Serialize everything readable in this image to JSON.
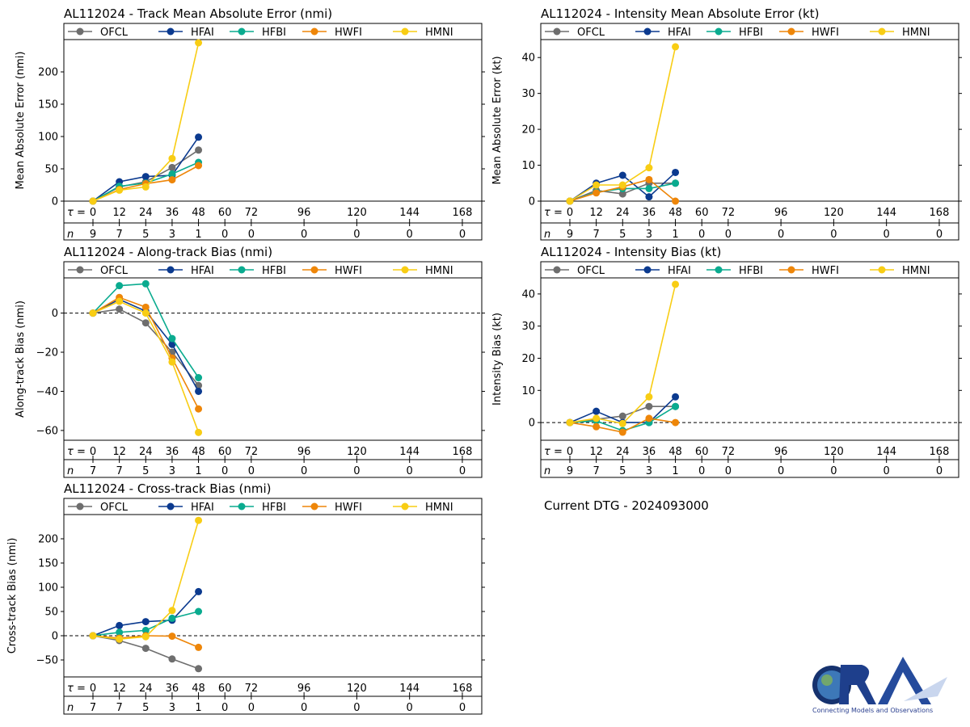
{
  "tau_label": "τ =",
  "n_label": "n",
  "tau_ticks": [
    0,
    12,
    24,
    36,
    48,
    60,
    72,
    96,
    120,
    144,
    168
  ],
  "models": [
    {
      "name": "OFCL",
      "color": "#6e6e6e"
    },
    {
      "name": "HFAI",
      "color": "#0b3a8f"
    },
    {
      "name": "HFBI",
      "color": "#0aab8f"
    },
    {
      "name": "HWFI",
      "color": "#ee8609"
    },
    {
      "name": "HMNI",
      "color": "#f8cd14"
    }
  ],
  "dtg_text": "Current DTG - 2024093000",
  "logo": {
    "text": "CIRA",
    "subtitle": "Connecting Models and Observations"
  },
  "chart_data": [
    {
      "id": "track",
      "type": "line",
      "title": "AL112024 - Track Mean Absolute Error (nmi)",
      "ylabel": "Mean Absolute Error (nmi)",
      "ylim": [
        0,
        250
      ],
      "yticks": [
        0,
        50,
        100,
        150,
        200
      ],
      "zero_line": false,
      "right_axis": false,
      "n_values": [
        9,
        7,
        5,
        3,
        1,
        0,
        0,
        0,
        0,
        0,
        0
      ],
      "x": [
        0,
        12,
        24,
        36,
        48
      ],
      "series": [
        {
          "name": "OFCL",
          "values": [
            0,
            22,
            30,
            52,
            79
          ]
        },
        {
          "name": "HFAI",
          "values": [
            0,
            30,
            38,
            40,
            99
          ]
        },
        {
          "name": "HFBI",
          "values": [
            0,
            23,
            28,
            42,
            60
          ]
        },
        {
          "name": "HWFI",
          "values": [
            0,
            18,
            27,
            33,
            55
          ]
        },
        {
          "name": "HMNI",
          "values": [
            0,
            17,
            22,
            66,
            245
          ]
        }
      ]
    },
    {
      "id": "intensity",
      "type": "line",
      "title": "AL112024 - Intensity Mean Absolute Error (kt)",
      "ylabel": "Mean Absolute Error (kt)",
      "ylim": [
        0,
        45
      ],
      "yticks": [
        0,
        10,
        20,
        30,
        40
      ],
      "zero_line": false,
      "right_axis": true,
      "n_values": [
        9,
        7,
        5,
        3,
        1,
        0,
        0,
        0,
        0,
        0,
        0
      ],
      "x": [
        0,
        12,
        24,
        36,
        48
      ],
      "series": [
        {
          "name": "OFCL",
          "values": [
            0,
            3,
            2,
            5,
            5
          ]
        },
        {
          "name": "HFAI",
          "values": [
            0,
            5,
            7.2,
            1.2,
            8
          ]
        },
        {
          "name": "HFBI",
          "values": [
            0,
            2.5,
            3.5,
            3.5,
            5
          ]
        },
        {
          "name": "HWFI",
          "values": [
            0,
            2.3,
            4,
            6,
            0
          ]
        },
        {
          "name": "HMNI",
          "values": [
            0,
            4.5,
            4.5,
            9.3,
            43
          ]
        }
      ]
    },
    {
      "id": "along",
      "type": "line",
      "title": "AL112024 - Along-track Bias (nmi)",
      "ylabel": "Along-track Bias (nmi)",
      "ylim": [
        -65,
        18
      ],
      "yticks": [
        -60,
        -40,
        -20,
        0
      ],
      "zero_line": true,
      "right_axis": false,
      "n_values": [
        7,
        7,
        5,
        3,
        1,
        0,
        0,
        0,
        0,
        0,
        0
      ],
      "x": [
        0,
        12,
        24,
        36,
        48
      ],
      "series": [
        {
          "name": "OFCL",
          "values": [
            0,
            2,
            -5,
            -20,
            -37
          ]
        },
        {
          "name": "HFAI",
          "values": [
            0,
            7,
            1,
            -16,
            -40
          ]
        },
        {
          "name": "HFBI",
          "values": [
            0,
            14,
            15,
            -13,
            -33
          ]
        },
        {
          "name": "HWFI",
          "values": [
            0,
            8,
            3,
            -23,
            -49
          ]
        },
        {
          "name": "HMNI",
          "values": [
            0,
            6,
            0,
            -25,
            -61
          ]
        }
      ]
    },
    {
      "id": "intbias",
      "type": "line",
      "title": "AL112024 - Intensity Bias (kt)",
      "ylabel": "Intensity Bias (kt)",
      "ylim": [
        -5.5,
        45
      ],
      "yticks": [
        0,
        10,
        20,
        30,
        40
      ],
      "zero_line": true,
      "right_axis": true,
      "n_values": [
        9,
        7,
        5,
        3,
        1,
        0,
        0,
        0,
        0,
        0,
        0
      ],
      "x": [
        0,
        12,
        24,
        36,
        48
      ],
      "series": [
        {
          "name": "OFCL",
          "values": [
            0,
            1,
            2,
            5,
            5
          ]
        },
        {
          "name": "HFAI",
          "values": [
            0,
            3.5,
            0,
            0,
            8
          ]
        },
        {
          "name": "HFBI",
          "values": [
            0,
            0.5,
            -2.5,
            0,
            5
          ]
        },
        {
          "name": "HWFI",
          "values": [
            0,
            -1.3,
            -3,
            1.3,
            0
          ]
        },
        {
          "name": "HMNI",
          "values": [
            0,
            1.3,
            -0.3,
            8,
            43
          ]
        }
      ]
    },
    {
      "id": "cross",
      "type": "line",
      "title": "AL112024 - Cross-track Bias (nmi)",
      "ylabel": "Cross-track Bias (nmi)",
      "ylim": [
        -85,
        250
      ],
      "yticks": [
        -50,
        0,
        50,
        100,
        150,
        200
      ],
      "zero_line": true,
      "right_axis": false,
      "n_values": [
        7,
        7,
        5,
        3,
        1,
        0,
        0,
        0,
        0,
        0,
        0
      ],
      "x": [
        0,
        12,
        24,
        36,
        48
      ],
      "series": [
        {
          "name": "OFCL",
          "values": [
            0,
            -10,
            -26,
            -48,
            -68
          ]
        },
        {
          "name": "HFAI",
          "values": [
            0,
            21,
            29,
            32,
            91
          ]
        },
        {
          "name": "HFBI",
          "values": [
            0,
            7,
            11,
            36,
            50
          ]
        },
        {
          "name": "HWFI",
          "values": [
            0,
            -5,
            0,
            -1,
            -24
          ]
        },
        {
          "name": "HMNI",
          "values": [
            0,
            -7,
            -2,
            52,
            238
          ]
        }
      ]
    }
  ]
}
